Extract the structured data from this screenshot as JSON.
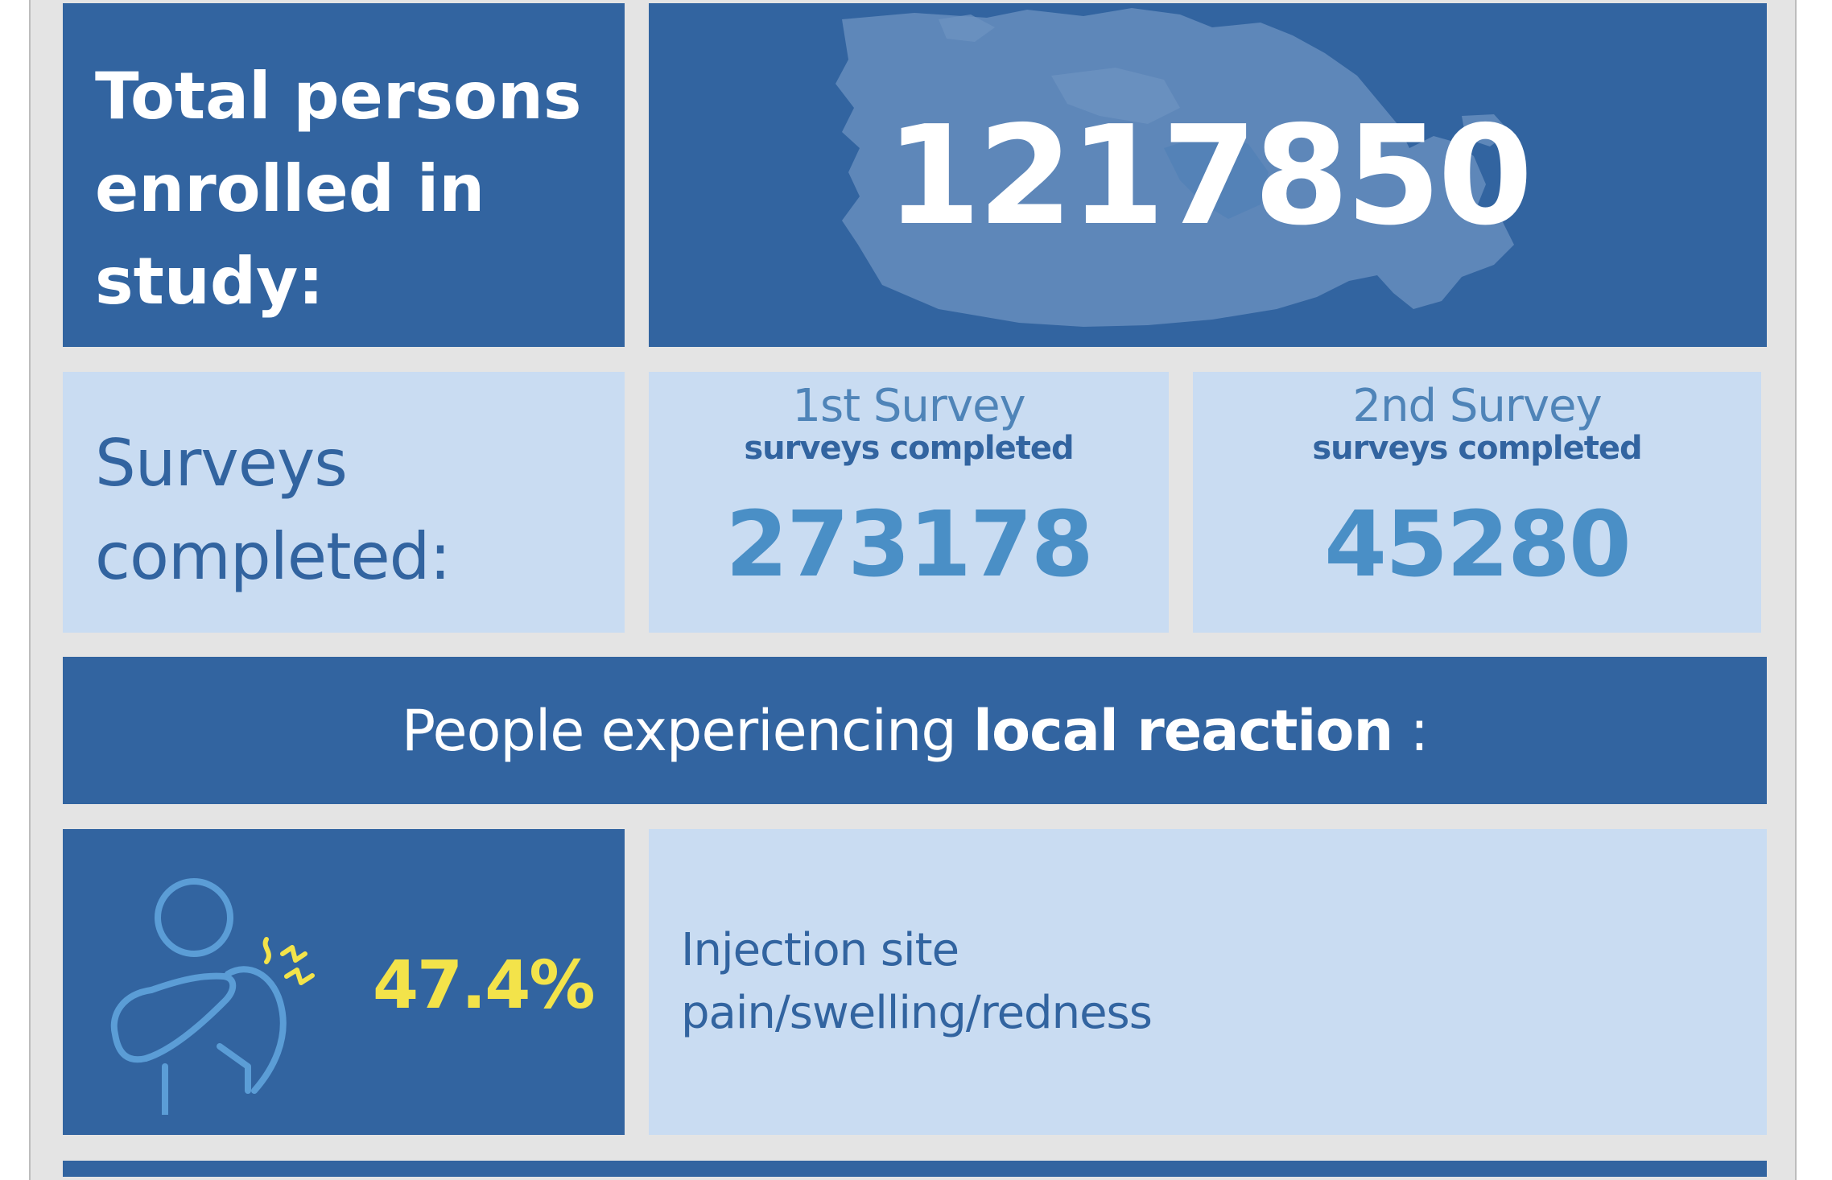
{
  "enrollment": {
    "label": "Total persons enrolled in study:",
    "count": "1217850"
  },
  "surveys": {
    "label": "Surveys completed:",
    "items": [
      {
        "name": "1st Survey",
        "subtitle": "surveys completed",
        "count": "273178"
      },
      {
        "name": "2nd Survey",
        "subtitle": "surveys completed",
        "count": "45280"
      }
    ]
  },
  "local_reaction": {
    "banner_prefix": "People experiencing ",
    "banner_emphasis": "local reaction",
    "banner_suffix": " :",
    "percent": "47.4%",
    "description_line1": "Injection site",
    "description_line2": "pain/swelling/redness"
  },
  "colors": {
    "dark_blue": "#3264a0",
    "light_blue": "#c9dcf2",
    "accent_blue": "#4a8fc6",
    "highlight_yellow": "#f3e34a",
    "background_gray": "#e4e4e4"
  },
  "icons": {
    "map": "canada-map-icon",
    "reaction": "shoulder-pain-icon"
  }
}
